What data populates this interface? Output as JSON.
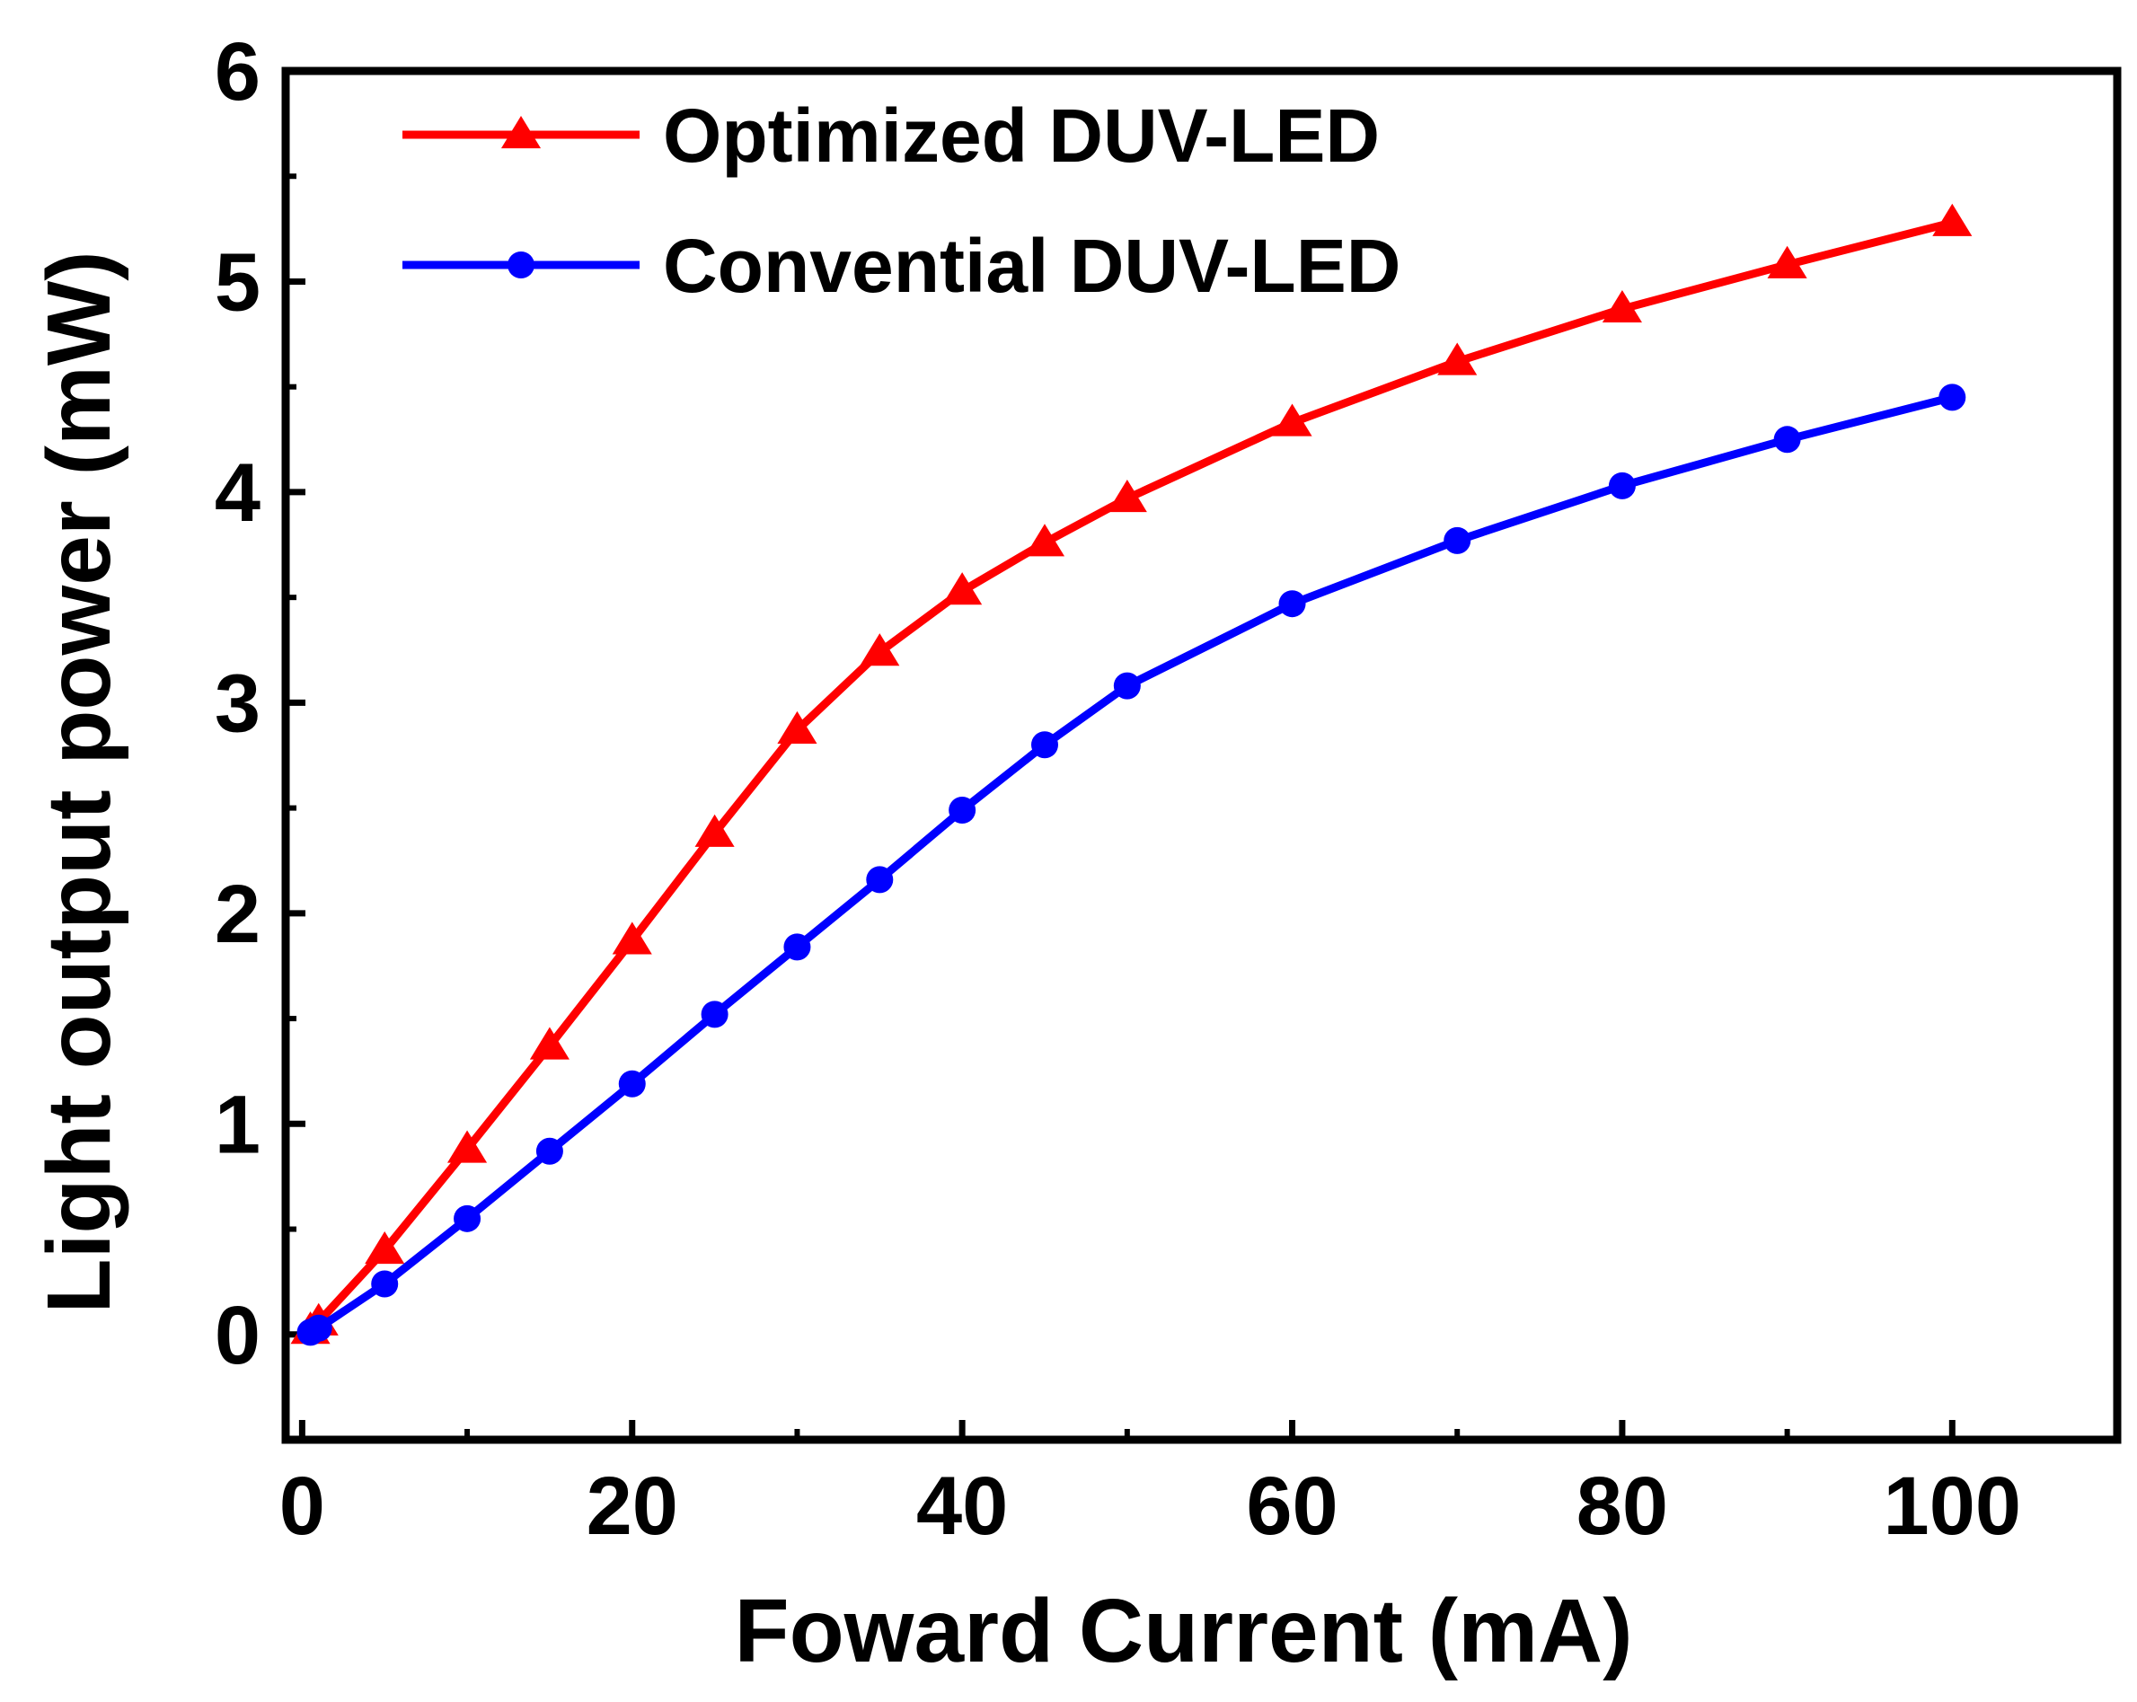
{
  "chart_data": {
    "type": "line",
    "title": "",
    "xlabel": "Foward Current (mA)",
    "ylabel": "Light output power (mW)",
    "xlim": [
      -1,
      110
    ],
    "ylim": [
      -0.5,
      6
    ],
    "xticks": [
      0,
      20,
      40,
      60,
      80,
      100
    ],
    "yticks": [
      0,
      1,
      2,
      3,
      4,
      5,
      6
    ],
    "grid": false,
    "legend_position": "top-left",
    "series": [
      {
        "name": "Optimized DUV-LED",
        "color": "#ff0000",
        "marker": "triangle",
        "x": [
          0.5,
          1,
          5,
          10,
          15,
          20,
          25,
          30,
          35,
          40,
          45,
          50,
          60,
          70,
          80,
          90,
          100
        ],
        "y": [
          0.02,
          0.06,
          0.4,
          0.88,
          1.37,
          1.87,
          2.38,
          2.87,
          3.24,
          3.53,
          3.76,
          3.97,
          4.33,
          4.62,
          4.87,
          5.08,
          5.28
        ]
      },
      {
        "name": "Convential DUV-LED",
        "color": "#0000ff",
        "marker": "circle",
        "x": [
          0.5,
          1,
          5,
          10,
          15,
          20,
          25,
          30,
          35,
          40,
          45,
          50,
          60,
          70,
          80,
          90,
          100
        ],
        "y": [
          0.01,
          0.03,
          0.24,
          0.55,
          0.87,
          1.19,
          1.52,
          1.84,
          2.16,
          2.49,
          2.8,
          3.08,
          3.47,
          3.77,
          4.03,
          4.25,
          4.45
        ]
      }
    ]
  }
}
